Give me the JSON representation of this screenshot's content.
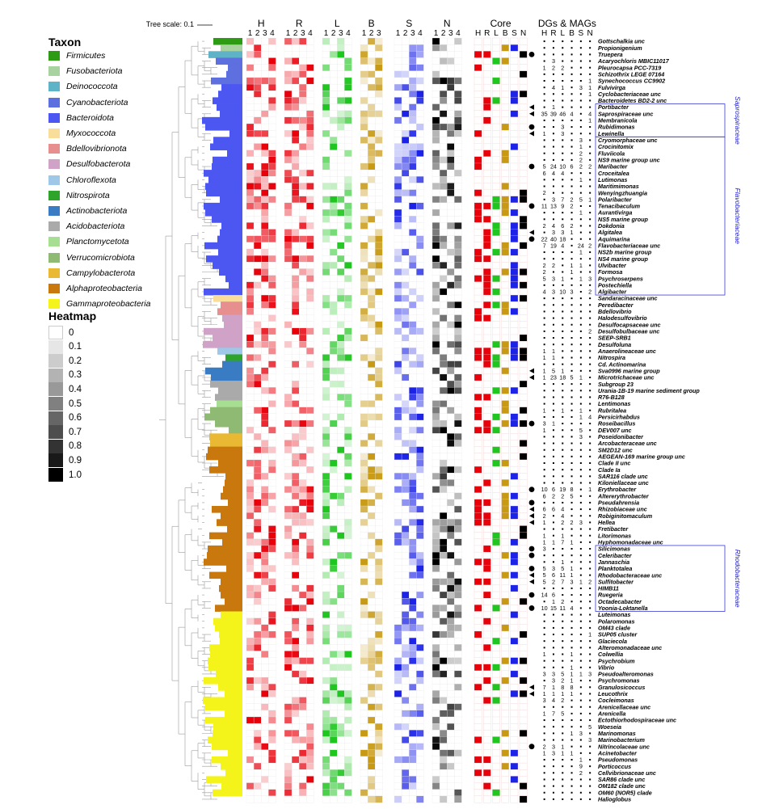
{
  "legend": {
    "taxon_title": "Taxon",
    "taxa": [
      {
        "name": "Firmicutes",
        "color": "#2e9b15"
      },
      {
        "name": "Fusobacteriota",
        "color": "#a8d2a0"
      },
      {
        "name": "Deinococcota",
        "color": "#5fb3c6"
      },
      {
        "name": "Cyanobacteriota",
        "color": "#5e6fe0"
      },
      {
        "name": "Bacteroidota",
        "color": "#4c57f2"
      },
      {
        "name": "Myxococcota",
        "color": "#f9dd9b"
      },
      {
        "name": "Bdellovibrionota",
        "color": "#e68f8e"
      },
      {
        "name": "Desulfobacterota",
        "color": "#d0a2c8"
      },
      {
        "name": "Chloroflexota",
        "color": "#9ec7e8"
      },
      {
        "name": "Nitrospirota",
        "color": "#2ea42a"
      },
      {
        "name": "Actinobacteriota",
        "color": "#3a7cc4"
      },
      {
        "name": "Acidobacteriota",
        "color": "#aaaaaa"
      },
      {
        "name": "Planctomycetota",
        "color": "#a7df92"
      },
      {
        "name": "Verrucomicrobiota",
        "color": "#8fba73"
      },
      {
        "name": "Campylobacterota",
        "color": "#e9b934"
      },
      {
        "name": "Alphaproteobacteria",
        "color": "#c8780c"
      },
      {
        "name": "Gammaproteobacteria",
        "color": "#f4f31a"
      }
    ],
    "heatmap_title": "Heatmap",
    "heatmap_levels": [
      "0",
      "0.1",
      "0.2",
      "0.3",
      "0.4",
      "0.5",
      "0.6",
      "0.7",
      "0.8",
      "0.9",
      "1.0"
    ]
  },
  "chart_data": {
    "type": "heatmap",
    "tree_scale_label": "Tree scale: 0.1",
    "groups": [
      {
        "name": "H",
        "cols": [
          "1",
          "2",
          "3",
          "4"
        ],
        "color": "#e8000b"
      },
      {
        "name": "R",
        "cols": [
          "1",
          "2",
          "3",
          "4"
        ],
        "color": "#e8000b"
      },
      {
        "name": "L",
        "cols": [
          "1",
          "2",
          "3",
          "4"
        ],
        "color": "#1fc61f"
      },
      {
        "name": "B",
        "cols": [
          "1",
          "2",
          "3"
        ],
        "color": "#c89a14"
      },
      {
        "name": "S",
        "cols": [
          "1",
          "2",
          "3",
          "4"
        ],
        "color": "#1c23e6"
      },
      {
        "name": "N",
        "cols": [
          "1",
          "2",
          "3",
          "4"
        ],
        "color": "#000000"
      }
    ],
    "core_title": "Core",
    "core_cols": [
      "H",
      "R",
      "L",
      "B",
      "S",
      "N"
    ],
    "mags_title": "DGs & MAGs",
    "mags_cols": [
      "H",
      "R",
      "L",
      "B",
      "S",
      "N"
    ],
    "families": [
      "Saprospiraceae",
      "Flavobacteriaceae",
      "Rhodobacteraceae"
    ],
    "taxa_labels": [
      "Gottschalkia unc",
      "Propionigenium",
      "Truepera",
      "Acaryochloris MBIC11017",
      "Pleurocapsa PCC-7319",
      "Schizothrix LEGE 07164",
      "Synechococcus CC9902",
      "Fulvivirga",
      "Cyclobacteriaceae unc",
      "Bacteroidetes BD2-2 unc",
      "Portibacter",
      "Saprospiraceae unc",
      "Membranicola",
      "Rubidimonas",
      "Lewinella",
      "Cryomorphaceae unc",
      "Crocinitomix",
      "Fluviicola",
      "NS9 marine group unc",
      "Maribacter",
      "Croceitalea",
      "Lutimonas",
      "Maritimimonas",
      "Wenyingzhuangia",
      "Polaribacter",
      "Tenacibaculum",
      "Aurantivirga",
      "NS5 marine group",
      "Dokdonia",
      "Algitalea",
      "Aquimarina",
      "Flavobacteriaceae unc",
      "NS2b marine group",
      "NS4 marine group",
      "Ulvibacter",
      "Formosa",
      "Psychroserpens",
      "Postechiella",
      "Algibacter",
      "Sandaracinaceae unc",
      "Peredibacter",
      "Bdellovibrio",
      "Halodesulfovibrio",
      "Desulfocapsaceae unc",
      "Desulfobulbaceae unc",
      "SEEP-SRB1",
      "Desulfoluna",
      "Anaerolineaceae unc",
      "Nitrospira",
      "Cd. Actinomarina",
      "Sva0996 marine group",
      "Microtrichaceae unc",
      "Subgroup 23",
      "Urania-1B-19 marine sediment group",
      "R76-B128",
      "Lentimonas",
      "Rubritalea",
      "Persicirhabdus",
      "Roseibacillus",
      "DEV007 unc",
      "Poseidonibacter",
      "Arcobacteraceae unc",
      "SM2D12 unc",
      "AEGEAN-169 marine group unc",
      "Clade II unc",
      "Clade Ia",
      "SAR116 clade unc",
      "Kiloniellaceae unc",
      "Erythrobacter",
      "Altererythrobacter",
      "Pseudahrensia",
      "Rhizobiaceae unc",
      "Robiginitomaculum",
      "Hellea",
      "Fretibacter",
      "Litorimonas",
      "Hyphomonadaceae unc",
      "Silicimonas",
      "Celeribacter",
      "Jannaschia",
      "Planktotalea",
      "Rhodobacteraceae unc",
      "Sulfitobacter",
      "HIMB11",
      "Ruegeria",
      "Octadecabacter",
      "Yoonia-Loktanella",
      "Luteimonas",
      "Polaromonas",
      "OM43 clade",
      "SUP05 cluster",
      "Glaciecola",
      "Alteromonadaceae unc",
      "Colwellia",
      "Psychrobium",
      "Vibrio",
      "Pseudoalteromonas",
      "Psychromonas",
      "Granulosicoccus",
      "Leucothrix",
      "Cocleimonas",
      "Arenicellaceae unc",
      "Arenicella",
      "Ectothiorhodospiraceae unc",
      "Woeseia",
      "Marinomonas",
      "Marinobacterium",
      "Nitrincolaceae unc",
      "Acinetobacter",
      "Pseudomonas",
      "Porticoccus",
      "Cellvibrionaceae unc",
      "SAR86 clade unc",
      "OM182 clade unc",
      "OM60 (NOR5) clade",
      "Halioglobus"
    ],
    "row_phyla": [
      0,
      1,
      2,
      3,
      3,
      3,
      3,
      4,
      4,
      4,
      4,
      4,
      4,
      4,
      4,
      4,
      4,
      4,
      4,
      4,
      4,
      4,
      4,
      4,
      4,
      4,
      4,
      4,
      4,
      4,
      4,
      4,
      4,
      4,
      4,
      4,
      4,
      4,
      4,
      5,
      6,
      6,
      7,
      7,
      7,
      7,
      7,
      8,
      9,
      10,
      10,
      10,
      11,
      11,
      11,
      12,
      13,
      13,
      13,
      13,
      14,
      14,
      15,
      15,
      15,
      15,
      15,
      15,
      15,
      15,
      15,
      15,
      15,
      15,
      15,
      15,
      15,
      15,
      15,
      15,
      15,
      15,
      15,
      15,
      15,
      15,
      15,
      16,
      16,
      16,
      16,
      16,
      16,
      16,
      16,
      16,
      16,
      16,
      16,
      16,
      16,
      16,
      16,
      16,
      16,
      16,
      16,
      16,
      16,
      16,
      16,
      16,
      16,
      16,
      16
    ],
    "mag_markers": {
      "2": "circle",
      "10": "triangle",
      "11": "triangle",
      "13": "circle",
      "14": "triangle",
      "19": "circle",
      "25": "circle",
      "29": "triangle",
      "30": "circle",
      "50": "triangle",
      "51": "triangle",
      "58": "circle",
      "68": "circle",
      "70": "circle",
      "71": "triangle",
      "72": "triangle",
      "73": "triangle",
      "77": "circle",
      "78": "circle",
      "80": "circle",
      "81": "triangle",
      "82": "triangle",
      "84": "circle",
      "86": "circle",
      "98": "triangle",
      "99": "triangle",
      "107": "circle"
    },
    "mag_counts": {
      "3": [
        "",
        "3",
        "",
        "",
        "",
        ""
      ],
      "4": [
        "1",
        "2",
        "2",
        "",
        "",
        ""
      ],
      "6": [
        "",
        "",
        "",
        "",
        "",
        "1"
      ],
      "7": [
        "",
        "4",
        "1",
        "",
        "3",
        "1"
      ],
      "8": [
        "",
        "",
        "",
        "",
        "",
        "1"
      ],
      "10": [
        "",
        "1",
        "",
        "",
        "",
        ""
      ],
      "11": [
        "35",
        "39",
        "46",
        "4",
        "",
        "4"
      ],
      "12": [
        "",
        "",
        "",
        "",
        "",
        "1"
      ],
      "13": [
        "",
        "",
        "3",
        "",
        "",
        ""
      ],
      "14": [
        "1",
        "",
        "3",
        "",
        "",
        ""
      ],
      "15": [
        "",
        "",
        "",
        "",
        "3",
        ""
      ],
      "16": [
        "",
        "",
        "",
        "",
        "1",
        ""
      ],
      "17": [
        "",
        "",
        "",
        "",
        "2",
        ""
      ],
      "18": [
        "",
        "",
        "",
        "",
        "2",
        ""
      ],
      "19": [
        "5",
        "24",
        "10",
        "6",
        "2",
        "2"
      ],
      "20": [
        "6",
        "4",
        "4",
        "",
        "",
        ""
      ],
      "21": [
        "",
        "",
        "",
        "",
        "1",
        ""
      ],
      "23": [
        "2",
        "",
        "",
        "",
        "",
        ""
      ],
      "24": [
        "",
        "3",
        "7",
        "2",
        "5",
        "1"
      ],
      "25": [
        "11",
        "13",
        "9",
        "2",
        "",
        ""
      ],
      "26": [
        "",
        "",
        "",
        "",
        "1",
        ""
      ],
      "28": [
        "2",
        "4",
        "6",
        "2",
        "",
        ""
      ],
      "29": [
        "",
        "3",
        "3",
        "1",
        "",
        ""
      ],
      "30": [
        "22",
        "40",
        "18",
        "",
        "",
        ""
      ],
      "31": [
        "7",
        "19",
        "4",
        "",
        "24",
        "2"
      ],
      "32": [
        "",
        "",
        "",
        "",
        "1",
        ""
      ],
      "34": [
        "2",
        "2",
        "",
        "1",
        "1",
        ""
      ],
      "35": [
        "2",
        "",
        "",
        "1",
        "",
        ""
      ],
      "36": [
        "5",
        "3",
        "1",
        "",
        "1",
        "3"
      ],
      "37": [
        "",
        "",
        "",
        "",
        "",
        ""
      ],
      "38": [
        "4",
        "3",
        "10",
        "3",
        "",
        "2"
      ],
      "44": [
        "",
        "",
        "",
        "",
        "",
        "2"
      ],
      "47": [
        "1",
        "1",
        "",
        "",
        "",
        ""
      ],
      "48": [
        "1",
        "1",
        "",
        "",
        "",
        ""
      ],
      "50": [
        "1",
        "5",
        "1",
        "",
        "",
        ""
      ],
      "51": [
        "1",
        "23",
        "18",
        "5",
        "1",
        ""
      ],
      "56": [
        "1",
        "",
        "1",
        "",
        "1",
        ""
      ],
      "57": [
        "",
        "",
        "",
        "",
        "1",
        "4"
      ],
      "58": [
        "3",
        "1",
        "",
        "",
        "",
        ""
      ],
      "59": [
        "1",
        "",
        "",
        "",
        "5",
        ""
      ],
      "60": [
        "",
        "",
        "",
        "",
        "3",
        ""
      ],
      "68": [
        "10",
        "6",
        "19",
        "8",
        "",
        "1"
      ],
      "69": [
        "6",
        "2",
        "2",
        "5",
        "",
        ""
      ],
      "70": [
        "",
        "",
        "",
        "",
        "",
        ""
      ],
      "71": [
        "6",
        "6",
        "4",
        "",
        "",
        ""
      ],
      "72": [
        "2",
        "",
        "4",
        "",
        "",
        ""
      ],
      "73": [
        "1",
        "",
        "2",
        "2",
        "3",
        ""
      ],
      "75": [
        "1",
        "",
        "1",
        "",
        "",
        ""
      ],
      "76": [
        "1",
        "1",
        "7",
        "1",
        "",
        ""
      ],
      "77": [
        "3",
        "",
        "",
        "",
        "",
        ""
      ],
      "79": [
        "",
        "",
        "1",
        "",
        "",
        ""
      ],
      "80": [
        "5",
        "3",
        "5",
        "1",
        "",
        ""
      ],
      "81": [
        "5",
        "6",
        "11",
        "1",
        "",
        ""
      ],
      "82": [
        "5",
        "2",
        "7",
        "3",
        "1",
        "2"
      ],
      "84": [
        "14",
        "6",
        "",
        "",
        "",
        ""
      ],
      "85": [
        "",
        "1",
        "2",
        "",
        "",
        ""
      ],
      "86": [
        "10",
        "15",
        "11",
        "4",
        "",
        ""
      ],
      "87": [
        "",
        "",
        "",
        "",
        "",
        ""
      ],
      "90": [
        "",
        "",
        "",
        "",
        "",
        "1"
      ],
      "93": [
        "1",
        "",
        "",
        "1",
        "",
        ""
      ],
      "94": [
        "",
        "",
        "",
        "",
        "",
        ""
      ],
      "95": [
        "",
        "",
        "",
        "1",
        "",
        ""
      ],
      "96": [
        "3",
        "3",
        "5",
        "1",
        "1",
        "3"
      ],
      "97": [
        "",
        "3",
        "2",
        "1",
        "",
        ""
      ],
      "98": [
        "7",
        "1",
        "8",
        "8",
        "",
        ""
      ],
      "99": [
        "1",
        "1",
        "1",
        "1",
        "",
        ""
      ],
      "100": [
        "3",
        "4",
        "2",
        "",
        "",
        ""
      ],
      "102": [
        "1",
        "7",
        "5",
        "",
        "",
        ""
      ],
      "104": [
        "",
        "",
        "",
        "",
        "",
        "5"
      ],
      "105": [
        "",
        "",
        "",
        "1",
        "3",
        ""
      ],
      "106": [
        "",
        "",
        "",
        "",
        "",
        "3"
      ],
      "107": [
        "2",
        "3",
        "1",
        "",
        "",
        ""
      ],
      "108": [
        "1",
        "3",
        "1",
        "1",
        "",
        ""
      ],
      "109": [
        "",
        "",
        "",
        "",
        "1",
        ""
      ],
      "110": [
        "",
        "",
        "",
        "",
        "9",
        ""
      ],
      "111": [
        "",
        "",
        "",
        "",
        "2",
        ""
      ]
    }
  }
}
